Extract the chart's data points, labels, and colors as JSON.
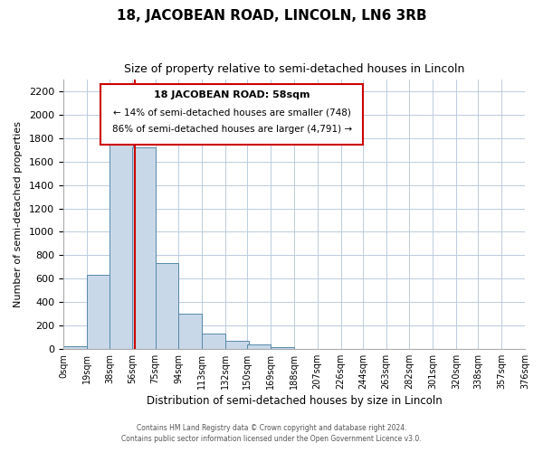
{
  "title": "18, JACOBEAN ROAD, LINCOLN, LN6 3RB",
  "subtitle": "Size of property relative to semi-detached houses in Lincoln",
  "xlabel": "Distribution of semi-detached houses by size in Lincoln",
  "ylabel": "Number of semi-detached properties",
  "bar_color": "#c8d8e8",
  "bar_edge_color": "#5588aa",
  "property_line_color": "#cc0000",
  "property_value": 58,
  "bin_edges": [
    0,
    19,
    38,
    56,
    75,
    94,
    113,
    132,
    150,
    169,
    188,
    207,
    226,
    244,
    263,
    282,
    301,
    320,
    338,
    357,
    376
  ],
  "bin_labels": [
    "0sqm",
    "19sqm",
    "38sqm",
    "56sqm",
    "75sqm",
    "94sqm",
    "113sqm",
    "132sqm",
    "150sqm",
    "169sqm",
    "188sqm",
    "207sqm",
    "226sqm",
    "244sqm",
    "263sqm",
    "282sqm",
    "301sqm",
    "320sqm",
    "338sqm",
    "357sqm",
    "376sqm"
  ],
  "bar_heights": [
    20,
    630,
    1840,
    1720,
    730,
    300,
    130,
    65,
    40,
    15,
    0,
    0,
    0,
    0,
    0,
    0,
    0,
    0,
    0,
    0
  ],
  "ylim": [
    0,
    2300
  ],
  "yticks": [
    0,
    200,
    400,
    600,
    800,
    1000,
    1200,
    1400,
    1600,
    1800,
    2000,
    2200
  ],
  "annotation_title": "18 JACOBEAN ROAD: 58sqm",
  "annotation_line1": "← 14% of semi-detached houses are smaller (748)",
  "annotation_line2": "86% of semi-detached houses are larger (4,791) →",
  "footer_line1": "Contains HM Land Registry data © Crown copyright and database right 2024.",
  "footer_line2": "Contains public sector information licensed under the Open Government Licence v3.0.",
  "background_color": "#ffffff",
  "grid_color": "#bbccdd",
  "annotation_box_color": "#ffffff",
  "annotation_box_edge": "#cc0000"
}
